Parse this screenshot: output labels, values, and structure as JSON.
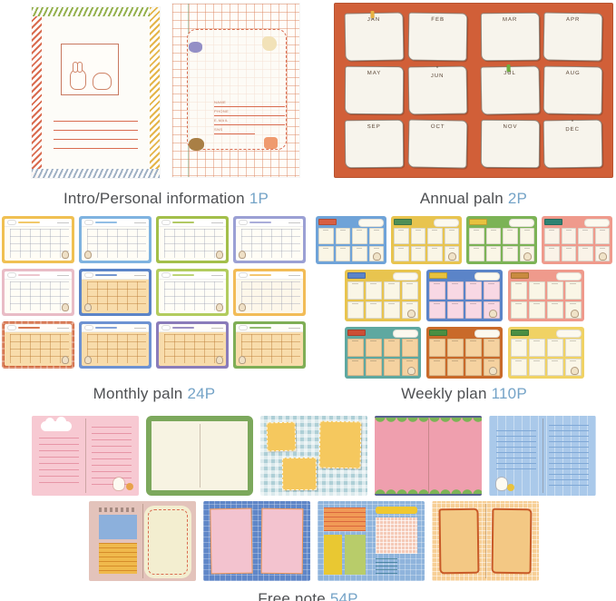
{
  "captions": {
    "intro": {
      "title": "Intro/Personal information",
      "count": "1P"
    },
    "annual": {
      "title": "Annual paln",
      "count": "2P"
    },
    "monthly": {
      "title": "Monthly paln",
      "count": "24P"
    },
    "weekly": {
      "title": "Weekly plan",
      "count": "110P"
    },
    "freenote": {
      "title": "Free note",
      "count": "54P"
    }
  },
  "caption_style": {
    "text_color": "#4d4f52",
    "count_color": "#74a3c7"
  },
  "intro_cover": {
    "edge_colors": {
      "left": "#d96b4f",
      "top": "#94b04c",
      "right": "#e4b54a",
      "bottom": "#9fb0c4"
    },
    "frame_color": "#c87860",
    "line_color": "#d96b4f",
    "line_count": 4,
    "doodles": [
      "bunny",
      "bear"
    ]
  },
  "info_page": {
    "grid_color": "#dd8a66",
    "dash_color": "#d96b4f",
    "fields": [
      "NAME",
      "PHONE",
      "E-MAIL",
      "SNS"
    ],
    "corner_blobs": [
      {
        "name": "purple-flower",
        "color": "#938fc6"
      },
      {
        "name": "cream-bunny",
        "color": "#f2e2b8"
      },
      {
        "name": "brown-bear",
        "color": "#a97f45"
      },
      {
        "name": "orange-tag",
        "color": "#ef9a6e"
      }
    ]
  },
  "annual": {
    "background": "#d15f38",
    "note_color": "#f7f4ec",
    "months": [
      "JAN",
      "FEB",
      "MAR",
      "APR",
      "MAY",
      "JUN",
      "JUL",
      "AUG",
      "SEP",
      "OCT",
      "NOV",
      "DEC"
    ],
    "pins": [
      {
        "month": "JAN",
        "color": "#e8b343"
      },
      {
        "month": "JUL",
        "color": "#6fae3f"
      }
    ],
    "starred_months": [
      "JUN",
      "DEC"
    ]
  },
  "monthly": {
    "items": [
      {
        "border": "#f0c052",
        "paper": "#fffdf6",
        "tone": "light"
      },
      {
        "border": "#7fb3e0",
        "paper": "#fffdf6",
        "tone": "light"
      },
      {
        "border": "#a3bf4a",
        "paper": "#fffdf6",
        "tone": "light"
      },
      {
        "border": "#9ba0d4",
        "paper": "#fffdf6",
        "tone": "light"
      },
      {
        "border": "#e9bcc6",
        "paper": "#fffdf6",
        "tone": "light"
      },
      {
        "border": "#5b84c8",
        "paper": "#f8dcab",
        "tone": "tan"
      },
      {
        "border": "#b2cc5e",
        "paper": "#fffdf6",
        "tone": "light"
      },
      {
        "border": "#f2bc57",
        "paper": "#fdf7ea",
        "tone": "light"
      },
      {
        "border": "#cf5f35",
        "paper": "#f8dcab",
        "tone": "tan",
        "plaid": true
      },
      {
        "border": "#6d92d2",
        "paper": "#f8dcab",
        "tone": "tan"
      },
      {
        "border": "#8a7cba",
        "paper": "#f8dcab",
        "tone": "tan"
      },
      {
        "border": "#7fae56",
        "paper": "#f8dcab",
        "tone": "tan"
      }
    ]
  },
  "weekly": {
    "rows": [
      [
        {
          "border": "#6fa3d8",
          "tab": "#d95f43",
          "paper": "#faf6e6"
        },
        {
          "border": "#e8c44f",
          "tab": "#4e8f56",
          "paper": "#faf6e6"
        },
        {
          "border": "#7cb356",
          "tab": "#e8c23e",
          "paper": "#faf6e6"
        },
        {
          "border": "#ef9a8c",
          "tab": "#2e8373",
          "paper": "#faf3e8"
        }
      ],
      [
        {
          "border": "#e8c44f",
          "tab": "#5b84c8",
          "paper": "#faf6e6"
        },
        {
          "border": "#5b84c8",
          "tab": "#e8c23e",
          "paper": "#f8d8e4"
        },
        {
          "border": "#ef9a8c",
          "tab": "#c98a3f",
          "paper": "#faf6e6"
        }
      ],
      [
        {
          "border": "#5fa8a0",
          "tab": "#cc4f35",
          "paper": "#f5d2a0"
        },
        {
          "border": "#c96a2a",
          "tab": "#4a8f42",
          "paper": "#f5d2a0"
        },
        {
          "border": "#f0d264",
          "tab": "#4a8f42",
          "paper": "#fbf7e8",
          "pattern": true
        }
      ]
    ]
  },
  "freenote": {
    "rows": [
      [
        {
          "variant": "pink-lined",
          "colors": {
            "bg": "#f7c9d2",
            "line": "#e795a6"
          }
        },
        {
          "variant": "green-frame",
          "colors": {
            "frame": "#7ca85c",
            "paper": "#f7f3e2"
          }
        },
        {
          "variant": "gingham-notes",
          "colors": {
            "bg": "#aecfd6",
            "note": "#f5c85e"
          }
        },
        {
          "variant": "pink-scallop",
          "colors": {
            "bg": "#ef9fae",
            "scallop": "#7cb356"
          }
        },
        {
          "variant": "blue-lined",
          "colors": {
            "bg": "#aac9ea",
            "line": "#7fa8d6"
          }
        }
      ],
      [
        {
          "variant": "blocks-beige",
          "colors": {
            "bg": "#e3c3bb",
            "blue": "#8cb0dc",
            "yellow": "#f0b94c",
            "note": "#f3eed0",
            "stitch": "#d96b4f"
          }
        },
        {
          "variant": "blue-plaid",
          "colors": {
            "bg": "#5f86c8",
            "note": "#f3c3cf"
          }
        },
        {
          "variant": "color-blocks",
          "colors": {
            "bg": "#8fb4dc",
            "orange": "#f19a56",
            "yellow": "#e9c832",
            "green": "#b8cc6a",
            "bar": "#f0c830",
            "check": "#f5cab8"
          }
        },
        {
          "variant": "orange-grid",
          "colors": {
            "bg": "#f7cf96",
            "note": "#f3c884",
            "outline": "#c85a28"
          }
        }
      ]
    ]
  }
}
